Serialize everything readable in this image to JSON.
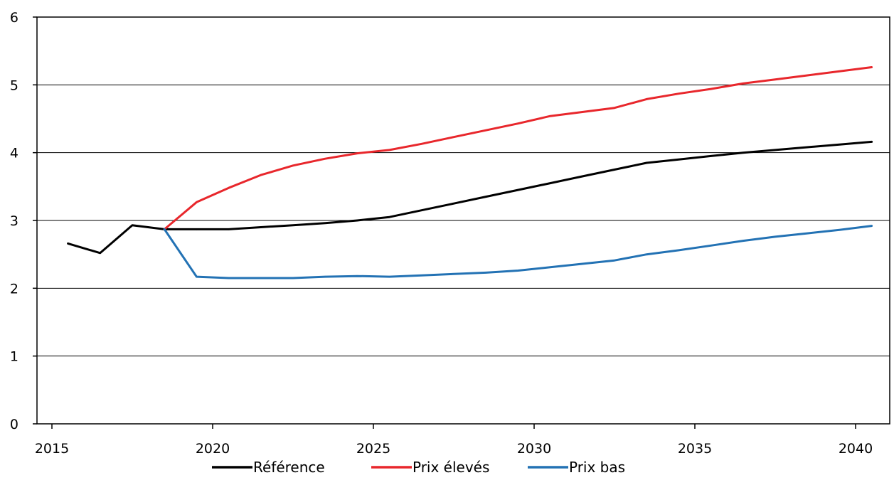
{
  "chart_data": {
    "type": "line",
    "title": "",
    "xlabel": "",
    "ylabel": "",
    "xlim": [
      2015,
      2040
    ],
    "ylim": [
      0,
      6
    ],
    "grid": "horizontal",
    "legend_position": "bottom",
    "x_ticks": [
      "2015",
      "2020",
      "2025",
      "2030",
      "2035",
      "2040"
    ],
    "y_ticks": [
      "0",
      "1",
      "2",
      "3",
      "4",
      "5",
      "6"
    ],
    "series": [
      {
        "name": "Référence",
        "color": "#000000",
        "points": [
          [
            2015.5,
            2.66
          ],
          [
            2016.5,
            2.52
          ],
          [
            2017.5,
            2.93
          ],
          [
            2018.5,
            2.87
          ],
          [
            2019.5,
            2.87
          ],
          [
            2020.5,
            2.87
          ],
          [
            2021.5,
            2.9
          ],
          [
            2022.5,
            2.93
          ],
          [
            2023.5,
            2.96
          ],
          [
            2024.5,
            3.0
          ],
          [
            2025.5,
            3.05
          ],
          [
            2026.5,
            3.15
          ],
          [
            2027.5,
            3.25
          ],
          [
            2028.5,
            3.35
          ],
          [
            2029.5,
            3.45
          ],
          [
            2030.5,
            3.55
          ],
          [
            2031.5,
            3.65
          ],
          [
            2032.5,
            3.75
          ],
          [
            2033.5,
            3.85
          ],
          [
            2034.5,
            3.9
          ],
          [
            2035.5,
            3.95
          ],
          [
            2036.5,
            4.0
          ],
          [
            2037.5,
            4.04
          ],
          [
            2038.5,
            4.08
          ],
          [
            2039.5,
            4.12
          ],
          [
            2040.5,
            4.16
          ]
        ]
      },
      {
        "name": "Prix élevés",
        "color": "#e8272c",
        "points": [
          [
            2018.5,
            2.87
          ],
          [
            2019.5,
            3.27
          ],
          [
            2020.5,
            3.48
          ],
          [
            2021.5,
            3.67
          ],
          [
            2022.5,
            3.81
          ],
          [
            2023.5,
            3.91
          ],
          [
            2024.5,
            3.99
          ],
          [
            2025.5,
            4.04
          ],
          [
            2026.5,
            4.13
          ],
          [
            2027.5,
            4.23
          ],
          [
            2028.5,
            4.33
          ],
          [
            2029.5,
            4.43
          ],
          [
            2030.5,
            4.54
          ],
          [
            2031.5,
            4.6
          ],
          [
            2032.5,
            4.66
          ],
          [
            2033.5,
            4.79
          ],
          [
            2034.5,
            4.87
          ],
          [
            2035.5,
            4.94
          ],
          [
            2036.5,
            5.02
          ],
          [
            2037.5,
            5.08
          ],
          [
            2038.5,
            5.14
          ],
          [
            2039.5,
            5.2
          ],
          [
            2040.5,
            5.26
          ]
        ]
      },
      {
        "name": "Prix bas",
        "color": "#2372b4",
        "points": [
          [
            2018.5,
            2.87
          ],
          [
            2019.5,
            2.17
          ],
          [
            2020.5,
            2.15
          ],
          [
            2021.5,
            2.15
          ],
          [
            2022.5,
            2.15
          ],
          [
            2023.5,
            2.17
          ],
          [
            2024.5,
            2.18
          ],
          [
            2025.5,
            2.17
          ],
          [
            2026.5,
            2.19
          ],
          [
            2027.5,
            2.21
          ],
          [
            2028.5,
            2.23
          ],
          [
            2029.5,
            2.26
          ],
          [
            2030.5,
            2.31
          ],
          [
            2031.5,
            2.36
          ],
          [
            2032.5,
            2.41
          ],
          [
            2033.5,
            2.5
          ],
          [
            2034.5,
            2.56
          ],
          [
            2035.5,
            2.63
          ],
          [
            2036.5,
            2.7
          ],
          [
            2037.5,
            2.76
          ],
          [
            2038.5,
            2.81
          ],
          [
            2039.5,
            2.86
          ],
          [
            2040.5,
            2.92
          ]
        ]
      }
    ]
  }
}
